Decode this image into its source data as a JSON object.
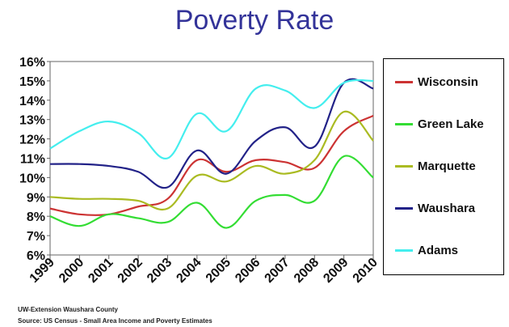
{
  "title": "Poverty Rate",
  "footer": {
    "line1": "UW-Extension Waushara County",
    "line2": "Source: US Census  - Small Area Income and Poverty Estimates"
  },
  "chart_data": {
    "type": "line",
    "title": "Poverty Rate",
    "x": [
      "1999",
      "2000",
      "2001",
      "2002",
      "2003",
      "2004",
      "2005",
      "2006",
      "2007",
      "2008",
      "2009",
      "2010"
    ],
    "ylim": [
      6,
      16
    ],
    "yticks": [
      "6%",
      "7%",
      "8%",
      "9%",
      "10%",
      "11%",
      "12%",
      "13%",
      "14%",
      "15%",
      "16%"
    ],
    "grid": false,
    "legend_position": "right",
    "series": [
      {
        "name": "Wisconsin",
        "color": "#cc3333",
        "values": [
          8.4,
          8.1,
          8.1,
          8.5,
          8.9,
          10.9,
          10.3,
          10.9,
          10.8,
          10.5,
          12.4,
          13.2
        ]
      },
      {
        "name": "Green Lake",
        "color": "#33dd33",
        "values": [
          8.0,
          7.5,
          8.1,
          7.9,
          7.7,
          8.7,
          7.4,
          8.8,
          9.1,
          8.8,
          11.1,
          10.0
        ]
      },
      {
        "name": "Marquette",
        "color": "#aabb22",
        "values": [
          9.0,
          8.9,
          8.9,
          8.8,
          8.4,
          10.1,
          9.8,
          10.6,
          10.2,
          10.9,
          13.4,
          11.9
        ]
      },
      {
        "name": "Waushara",
        "color": "#222288",
        "values": [
          10.7,
          10.7,
          10.6,
          10.3,
          9.5,
          11.4,
          10.2,
          11.9,
          12.6,
          11.6,
          14.9,
          14.6
        ]
      },
      {
        "name": "Adams",
        "color": "#44eeee",
        "values": [
          11.5,
          12.4,
          12.9,
          12.3,
          11.0,
          13.3,
          12.4,
          14.6,
          14.5,
          13.6,
          14.9,
          15.0
        ]
      }
    ]
  }
}
